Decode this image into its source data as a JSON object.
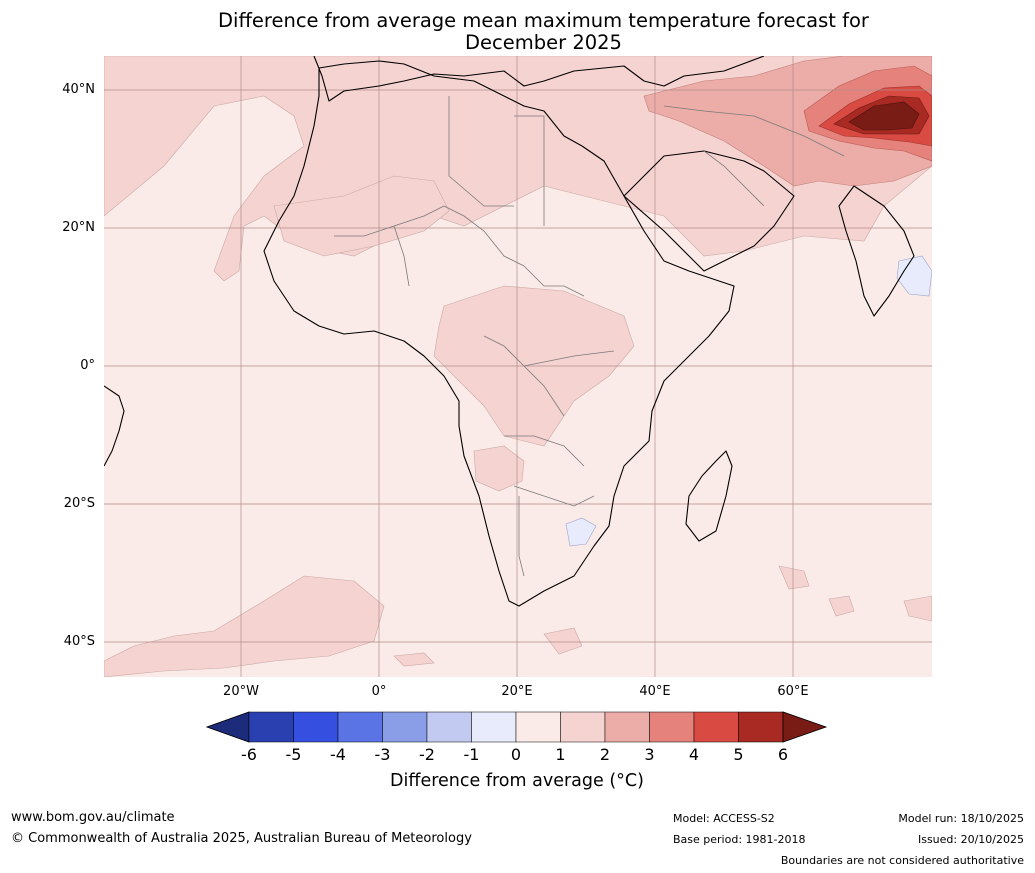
{
  "title": {
    "line1": "Difference from average mean maximum temperature forecast for",
    "line2": "December 2025"
  },
  "axes": {
    "lat_labels": [
      "40°N",
      "20°N",
      "0°",
      "20°S",
      "40°S"
    ],
    "lon_labels": [
      "20°W",
      "0°",
      "20°E",
      "40°E",
      "60°E"
    ]
  },
  "colorbar": {
    "ticks": [
      "-6",
      "-5",
      "-4",
      "-3",
      "-2",
      "-1",
      "0",
      "1",
      "2",
      "3",
      "4",
      "5",
      "6"
    ],
    "colors": [
      "#1c2c7a",
      "#2a40b0",
      "#3550e0",
      "#5a74e6",
      "#8a9ee8",
      "#c2caf2",
      "#e8ebfb",
      "#fbebe8",
      "#f5d3d0",
      "#ecaca8",
      "#e5827b",
      "#d94a42",
      "#a82a22",
      "#7a1c16"
    ],
    "label": "Difference from average (°C)"
  },
  "map": {
    "ocean_color": "#fbebe8",
    "band_1_2_color": "#f5d3d0",
    "band_2_3_color": "#ecaca8",
    "band_3_4_color": "#e5827b",
    "band_4_5_color": "#d94a42",
    "band_5_6_color": "#a82a22",
    "band_6p_color": "#7a1c16",
    "band_neg_color": "#e8ebfb"
  },
  "footer": {
    "website": "www.bom.gov.au/climate",
    "copyright": "© Commonwealth of Australia 2025, Australian Bureau of Meteorology",
    "model": "Model: ACCESS-S2",
    "base_period": "Base period: 1981-2018",
    "model_run": "Model run: 18/10/2025",
    "issued": "Issued: 20/10/2025",
    "disclaimer": "Boundaries are not considered authoritative"
  }
}
